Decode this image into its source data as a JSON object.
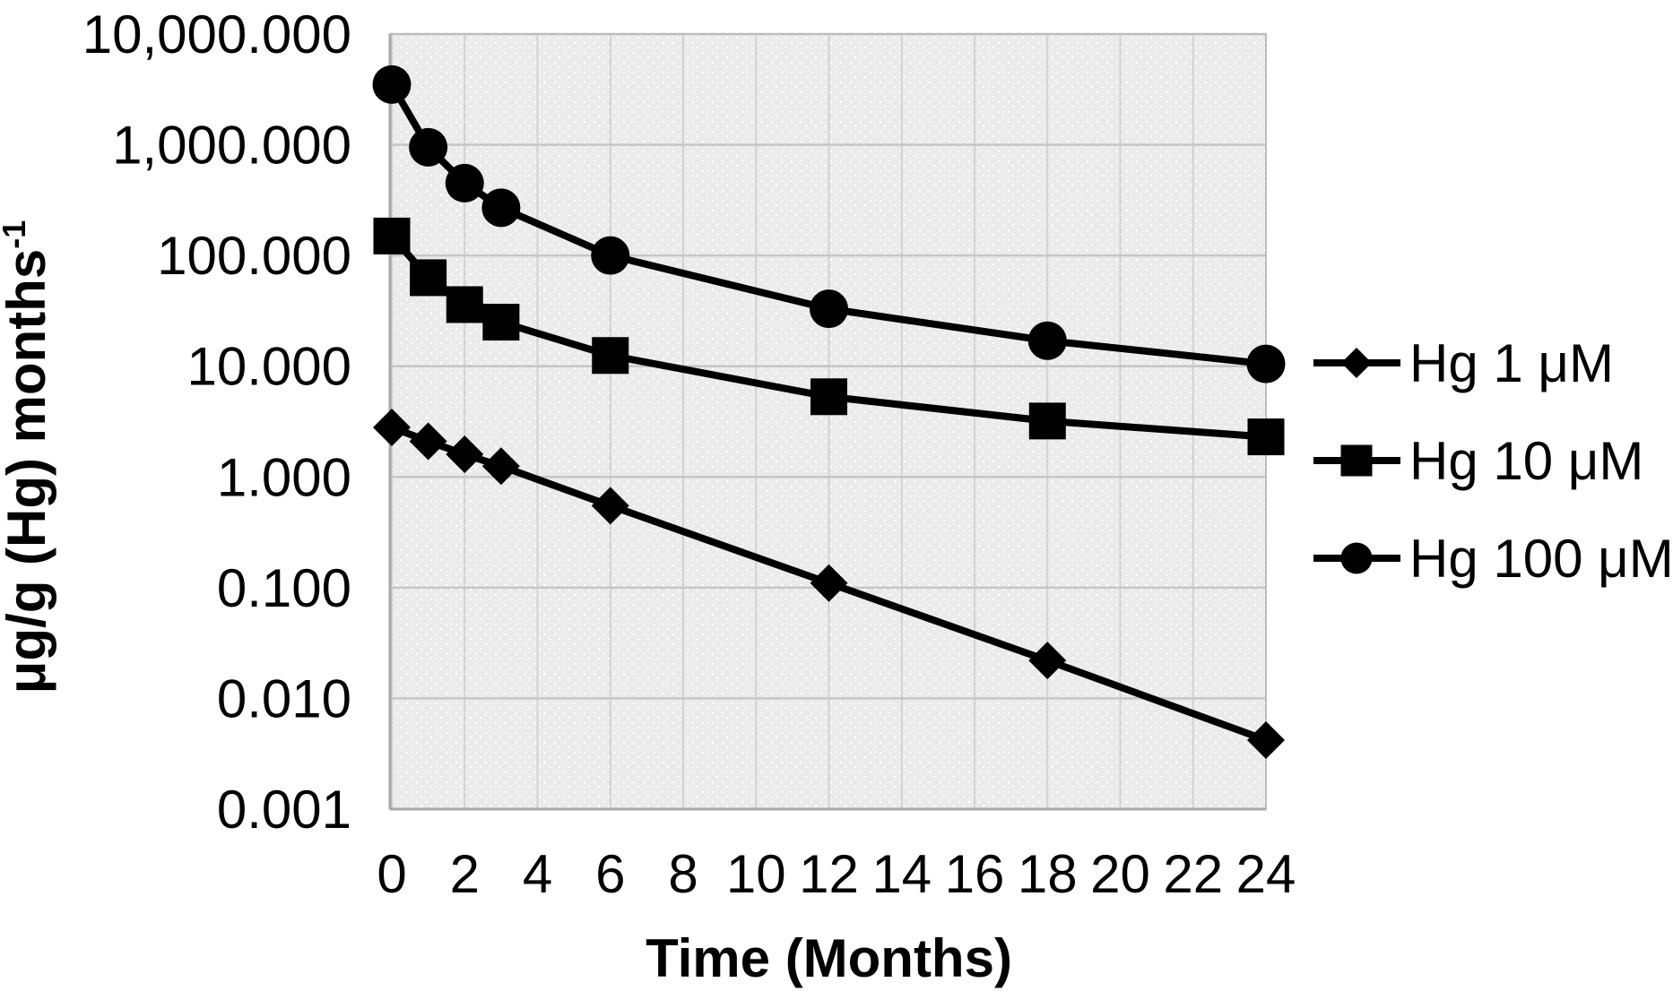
{
  "chart_data": {
    "type": "line",
    "title": "",
    "xlabel": "Time (Months)",
    "ylabel": "μg/g (Hg) months⁻¹",
    "ylabel_base": "μg/g (Hg) months",
    "ylabel_superscript": "-1",
    "x": [
      0,
      1,
      2,
      3,
      6,
      12,
      18,
      24
    ],
    "series": [
      {
        "name": "Hg 1 μM",
        "marker": "diamond",
        "values": [
          2.8,
          2.1,
          1.6,
          1.25,
          0.55,
          0.11,
          0.022,
          0.0042
        ]
      },
      {
        "name": "Hg 10 μM",
        "marker": "square",
        "values": [
          150,
          63,
          36,
          25,
          12.5,
          5.3,
          3.2,
          2.3
        ]
      },
      {
        "name": "Hg 100 μM",
        "marker": "circle",
        "values": [
          3500,
          950,
          450,
          270,
          100,
          33,
          17,
          10.5
        ]
      }
    ],
    "y_axis": {
      "scale": "log",
      "min": 0.001,
      "max": 10000,
      "tick_values": [
        10000,
        1000,
        100,
        10,
        1,
        0.1,
        0.01,
        0.001
      ],
      "tick_labels": [
        "10,000.000",
        "1,000.000",
        "100.000",
        "10.000",
        "1.000",
        "0.100",
        "0.010",
        "0.001"
      ]
    },
    "x_axis": {
      "min": 0,
      "max": 24,
      "tick_values": [
        0,
        2,
        4,
        6,
        8,
        10,
        12,
        14,
        16,
        18,
        20,
        22,
        24
      ],
      "tick_labels": [
        "0",
        "2",
        "4",
        "6",
        "8",
        "10",
        "12",
        "14",
        "16",
        "18",
        "20",
        "22",
        "24"
      ]
    },
    "legend": {
      "position": "right",
      "entries": [
        "Hg 1 μM",
        "Hg 10 μM",
        "Hg 100 μM"
      ]
    },
    "grid": true,
    "colors": {
      "series": "#000000",
      "text": "#000000",
      "grid_vertical": "#d2d2d2",
      "grid_horizontal": "#c6c6c6",
      "axis_line": "#a8a8a8",
      "plot_border": "#bdbdbd",
      "plot_bg": "#ebebeb",
      "plot_bg_dots": "#ffffff",
      "page_bg": "#ffffff"
    }
  }
}
